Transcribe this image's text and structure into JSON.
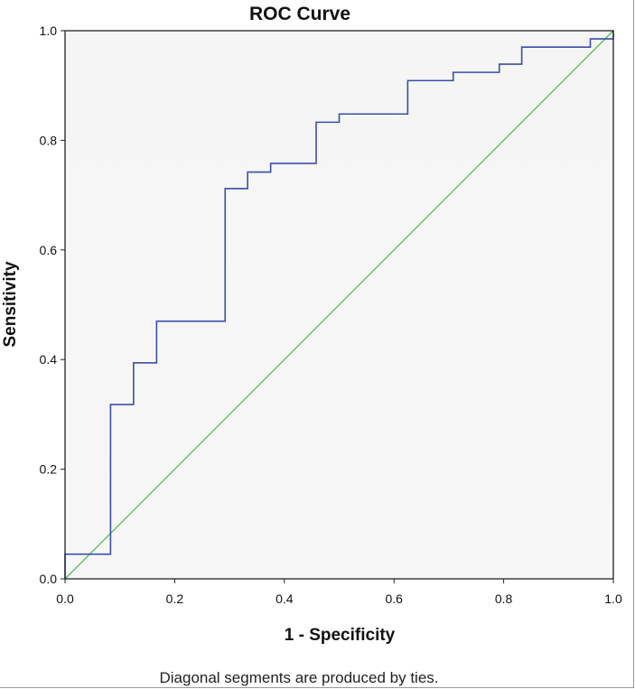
{
  "chart_data": {
    "type": "line",
    "title": "ROC Curve",
    "xlabel": "1 - Specificity",
    "ylabel": "Sensitivity",
    "xlim": [
      0.0,
      1.0
    ],
    "ylim": [
      0.0,
      1.0
    ],
    "x_ticks": [
      "0.0",
      "0.2",
      "0.4",
      "0.6",
      "0.8",
      "1.0"
    ],
    "y_ticks": [
      "0.0",
      "0.2",
      "0.4",
      "0.6",
      "0.8",
      "1.0"
    ],
    "grid": false,
    "footnote": "Diagonal segments are produced by ties.",
    "series": [
      {
        "color": "#3a4fa8",
        "x": [
          0.0,
          0.0,
          0.083,
          0.083,
          0.125,
          0.125,
          0.167,
          0.167,
          0.292,
          0.292,
          0.333,
          0.333,
          0.375,
          0.375,
          0.458,
          0.458,
          0.5,
          0.5,
          0.625,
          0.625,
          0.708,
          0.708,
          0.792,
          0.792,
          0.833,
          0.833,
          0.958,
          0.958,
          1.0,
          1.0
        ],
        "y": [
          0.0,
          0.045,
          0.045,
          0.318,
          0.318,
          0.394,
          0.394,
          0.47,
          0.47,
          0.712,
          0.712,
          0.742,
          0.742,
          0.758,
          0.758,
          0.833,
          0.833,
          0.848,
          0.848,
          0.909,
          0.909,
          0.924,
          0.924,
          0.939,
          0.939,
          0.97,
          0.97,
          0.985,
          0.985,
          1.0
        ]
      },
      {
        "color": "#4cbf4c",
        "x": [
          0.0,
          1.0
        ],
        "y": [
          0.0,
          1.0
        ]
      }
    ]
  }
}
